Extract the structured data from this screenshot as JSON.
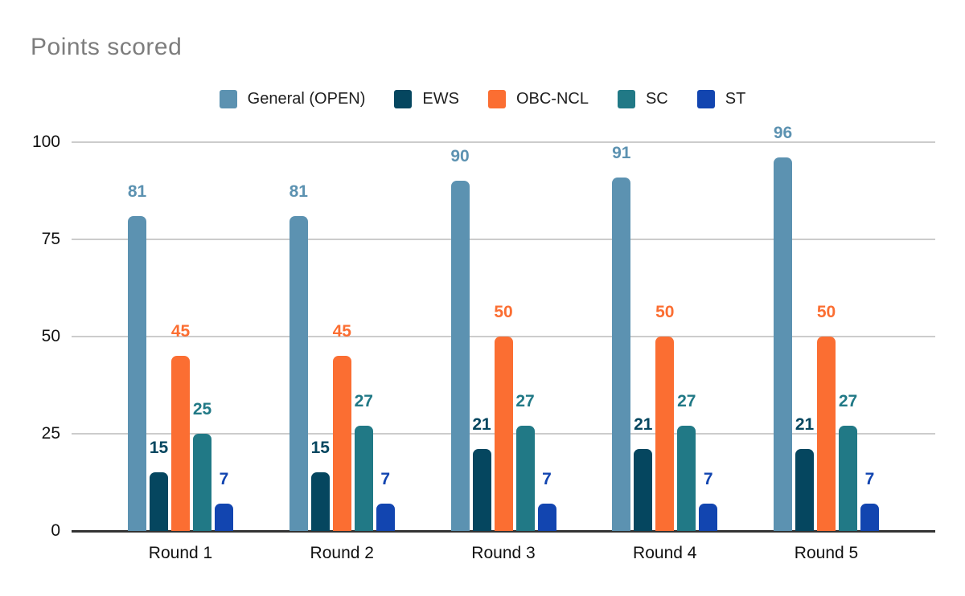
{
  "chart_data": {
    "type": "bar",
    "title": "Points scored",
    "categories": [
      "Round 1",
      "Round 2",
      "Round 3",
      "Round 4",
      "Round 5"
    ],
    "series": [
      {
        "name": "General (OPEN)",
        "color": "#5c92b1",
        "values": [
          81,
          81,
          90,
          91,
          96
        ]
      },
      {
        "name": "EWS",
        "color": "#05465f",
        "values": [
          15,
          15,
          21,
          21,
          21
        ]
      },
      {
        "name": "OBC-NCL",
        "color": "#fb6e32",
        "values": [
          45,
          45,
          50,
          50,
          50
        ]
      },
      {
        "name": "SC",
        "color": "#217986",
        "values": [
          25,
          27,
          27,
          27,
          27
        ]
      },
      {
        "name": "ST",
        "color": "#1245b0",
        "values": [
          7,
          7,
          7,
          7,
          7
        ]
      }
    ],
    "ylim": [
      0,
      100
    ],
    "yticks": [
      0,
      25,
      50,
      75,
      100
    ],
    "grid": true,
    "legend_position": "top",
    "data_labels": true,
    "colors": {
      "title": "#7d7d7d",
      "gridline": "#cccccc",
      "axis_line": "#333333",
      "tick_label": "#111111",
      "background": "#ffffff"
    }
  }
}
